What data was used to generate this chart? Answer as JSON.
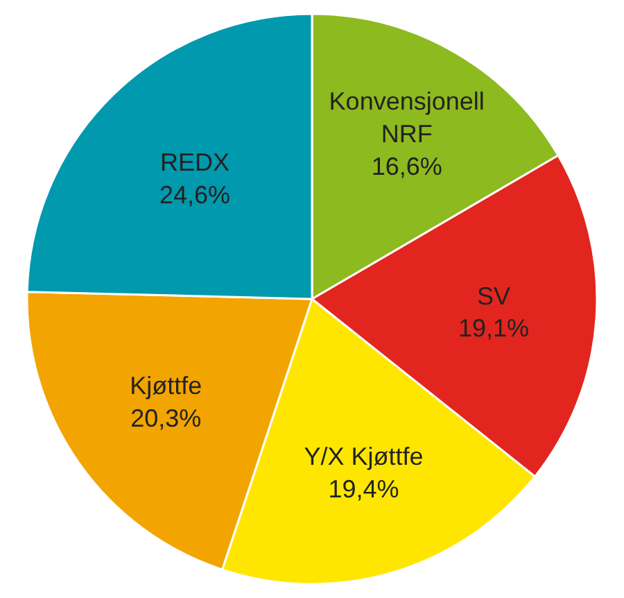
{
  "chart_data": {
    "type": "pie",
    "categories": [
      "Konvensjonell NRF",
      "SV",
      "Y/X Kjøttfe",
      "Kjøttfe",
      "REDX"
    ],
    "values": [
      16.6,
      19.1,
      19.4,
      20.3,
      24.6
    ],
    "value_labels": [
      "16,6%",
      "19,1%",
      "19,4%",
      "20,3%",
      "24,6%"
    ],
    "colors": [
      "#8dba1f",
      "#e2261f",
      "#ffe600",
      "#f2a400",
      "#0099ad"
    ],
    "legend": false
  }
}
